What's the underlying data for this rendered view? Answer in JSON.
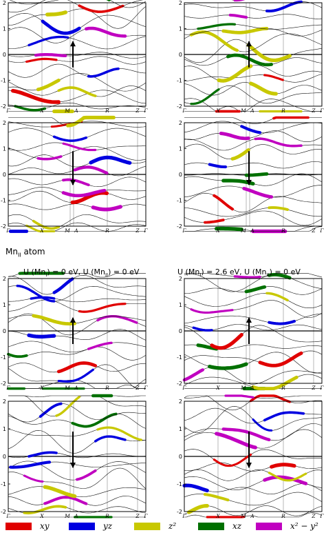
{
  "section": {
    "title": "Mn",
    "title_sub": "II",
    "title_rest": " atom"
  },
  "column_titles": [
    {
      "text": "U (Mn",
      "sub1": "I",
      "mid": ") = 0 eV,  U (Mn",
      "sub2": "II",
      "end": ") = 0 eV"
    },
    {
      "text": "U (Mn",
      "sub1": "I",
      "mid": ") = 2.6 eV,  U (Mn",
      "sub2": "II",
      "end": ") = 0 eV"
    }
  ],
  "legend": [
    {
      "label": "xy",
      "color": "#e00000"
    },
    {
      "label": "yz",
      "color": "#0000e0"
    },
    {
      "label": "z²",
      "color": "#c8c800"
    },
    {
      "label": "xz",
      "color": "#007000"
    },
    {
      "label": "x² − y²",
      "color": "#c000c0"
    }
  ],
  "chart_data": [
    {
      "type": "line",
      "panel": "top-row1-left",
      "spin": "up",
      "ylim": [
        -2,
        2
      ],
      "yticks": [
        "2",
        "1",
        "0",
        "-1",
        "-2"
      ],
      "kpoints": [
        "Γ",
        "X",
        "M",
        "A",
        "R",
        "Z",
        "Γ"
      ]
    },
    {
      "type": "line",
      "panel": "top-row1-right",
      "spin": "up",
      "ylim": [
        -2,
        2
      ],
      "yticks": [
        "2",
        "1",
        "0",
        "-1",
        "-2"
      ],
      "kpoints": [
        "Γ",
        "X",
        "M",
        "A",
        "R",
        "Z",
        "Γ"
      ]
    },
    {
      "type": "line",
      "panel": "top-row2-left",
      "spin": "down",
      "ylim": [
        -2,
        2
      ],
      "yticks": [
        "2",
        "1",
        "0",
        "-1",
        "-2"
      ],
      "kpoints": [
        "Γ",
        "X",
        "M",
        "A",
        "R",
        "Z",
        "Γ"
      ]
    },
    {
      "type": "line",
      "panel": "top-row2-right",
      "spin": "down",
      "ylim": [
        -2,
        2
      ],
      "yticks": [
        "2",
        "1",
        "0",
        "-1",
        "-2"
      ],
      "kpoints": [
        "Γ",
        "X",
        "M",
        "A",
        "R",
        "Z",
        "Γ"
      ]
    },
    {
      "type": "line",
      "panel": "bottom-row1-left",
      "spin": "up",
      "ylim": [
        -2,
        2
      ],
      "yticks": [
        "2",
        "1",
        "0",
        "-1",
        "-2"
      ],
      "kpoints": [
        "Γ",
        "X",
        "M",
        "A",
        "R",
        "Z",
        "Γ"
      ]
    },
    {
      "type": "line",
      "panel": "bottom-row1-right",
      "spin": "up",
      "ylim": [
        -2,
        2
      ],
      "yticks": [
        "2",
        "1",
        "0",
        "-1",
        "-2"
      ],
      "kpoints": [
        "Γ",
        "X",
        "M",
        "A",
        "R",
        "Z",
        "Γ"
      ]
    },
    {
      "type": "line",
      "panel": "bottom-row2-left",
      "spin": "down",
      "ylim": [
        -2,
        2
      ],
      "yticks": [
        "2",
        "1",
        "0",
        "-1",
        "-2"
      ],
      "kpoints": [
        "Γ",
        "X",
        "M",
        "A",
        "R",
        "Z",
        "Γ"
      ]
    },
    {
      "type": "line",
      "panel": "bottom-row2-right",
      "spin": "down",
      "ylim": [
        -2,
        2
      ],
      "yticks": [
        "2",
        "1",
        "0",
        "-1",
        "-2"
      ],
      "kpoints": [
        "Γ",
        "X",
        "M",
        "A",
        "R",
        "Z",
        "Γ"
      ]
    }
  ]
}
